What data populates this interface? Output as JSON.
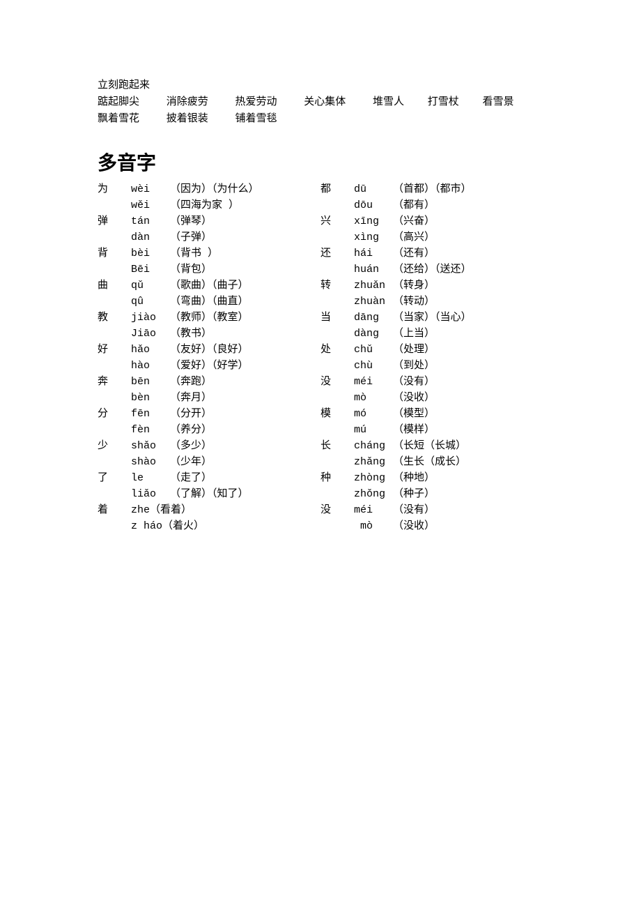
{
  "top_line": "立刻跑起来",
  "phrases_row1": [
    "踮起脚尖",
    "消除疲劳",
    "热爱劳动",
    "关心集体",
    "堆雪人",
    "打雪杖",
    "看雪景"
  ],
  "phrases_row2": [
    "飘着雪花",
    "披着银装",
    "铺着雪毯"
  ],
  "heading": "多音字",
  "left": [
    {
      "char": "为",
      "pinyin": "wèi",
      "words": "（因为）（为什么）"
    },
    {
      "char": "",
      "pinyin": "wěi",
      "words": "（四海为家 ）"
    },
    {
      "char": "弹",
      "pinyin": "tán",
      "words": "（弹琴）"
    },
    {
      "char": "",
      "pinyin": "dàn",
      "words": "（子弹）"
    },
    {
      "char": "背",
      "pinyin": "bèi",
      "words": "（背书 ）"
    },
    {
      "char": "",
      "pinyin": "Bēi",
      "words": "（背包）"
    },
    {
      "char": "曲",
      "pinyin": "qǔ",
      "words": "（歌曲）（曲子）"
    },
    {
      "char": "",
      "pinyin": "qû",
      "words": "（弯曲）（曲直）"
    },
    {
      "char": "教",
      "pinyin": "jiào",
      "words": "（教师）（教室）"
    },
    {
      "char": "",
      "pinyin": "Jiāo",
      "words": "（教书）"
    },
    {
      "char": "好",
      "pinyin": "hǎo",
      "words": "（友好）（良好）"
    },
    {
      "char": "",
      "pinyin": "hào",
      "words": "（爱好）（好学）"
    },
    {
      "char": "奔",
      "pinyin": "bēn",
      "words": "（奔跑）"
    },
    {
      "char": "",
      "pinyin": "bèn",
      "words": "（奔月）"
    },
    {
      "char": "分",
      "pinyin": "fēn",
      "words": "（分开）"
    },
    {
      "char": "",
      "pinyin": "fèn",
      "words": "（养分）"
    },
    {
      "char": "少",
      "pinyin": "shǎo",
      "words": "（多少）"
    },
    {
      "char": "",
      "pinyin": "shào",
      "words": "（少年）"
    },
    {
      "char": "了",
      "pinyin": "le",
      "words": "（走了）"
    },
    {
      "char": "",
      "pinyin": "liǎo",
      "words": "（了解）（知了）"
    }
  ],
  "left_special": [
    {
      "char": "着",
      "rest": "zhe（看着）"
    },
    {
      "char": "",
      "rest": "z háo（着火）"
    }
  ],
  "right": [
    {
      "char": "都",
      "pinyin": "dū",
      "words": "（首都）（都市）"
    },
    {
      "char": "",
      "pinyin": "dōu",
      "words": "（都有）"
    },
    {
      "char": "兴",
      "pinyin": "xīng",
      "words": "（兴奋）"
    },
    {
      "char": "",
      "pinyin": "xìng",
      "words": "（高兴）"
    },
    {
      "char": "还",
      "pinyin": "hái",
      "words": "（还有）"
    },
    {
      "char": "",
      "pinyin": "huán",
      "words": "（还给）（送还）"
    },
    {
      "char": "转",
      "pinyin": "zhuǎn",
      "words": "（转身）"
    },
    {
      "char": "",
      "pinyin": "zhuàn",
      "words": "（转动）"
    },
    {
      "char": "当",
      "pinyin": "dāng",
      "words": "（当家）（当心）"
    },
    {
      "char": "",
      "pinyin": "dàng",
      "words": "（上当）"
    },
    {
      "char": "处",
      "pinyin": "chǔ",
      "words": "（处理）"
    },
    {
      "char": "",
      "pinyin": "chù",
      "words": "（到处）"
    },
    {
      "char": "没",
      "pinyin": "méi",
      "words": "（没有）"
    },
    {
      "char": "",
      "pinyin": "mò",
      "words": "（没收）"
    },
    {
      "char": "模",
      "pinyin": "mó",
      "words": "（模型）"
    },
    {
      "char": "",
      "pinyin": "mú",
      "words": "（模样）"
    },
    {
      "char": "长",
      "pinyin": "cháng",
      "words": "（长短（长城）"
    },
    {
      "char": "",
      "pinyin": "zhǎng",
      "words": "（生长（成长）"
    },
    {
      "char": "种",
      "pinyin": "zhòng",
      "words": "（种地）"
    },
    {
      "char": "",
      "pinyin": "zhǒng",
      "words": "（种子）"
    },
    {
      "char": "没",
      "pinyin": "méi",
      "words": "（没有）"
    }
  ],
  "right_special": [
    {
      "char": "",
      "pinyin_indent": " mò",
      "words": "（没收）"
    }
  ]
}
